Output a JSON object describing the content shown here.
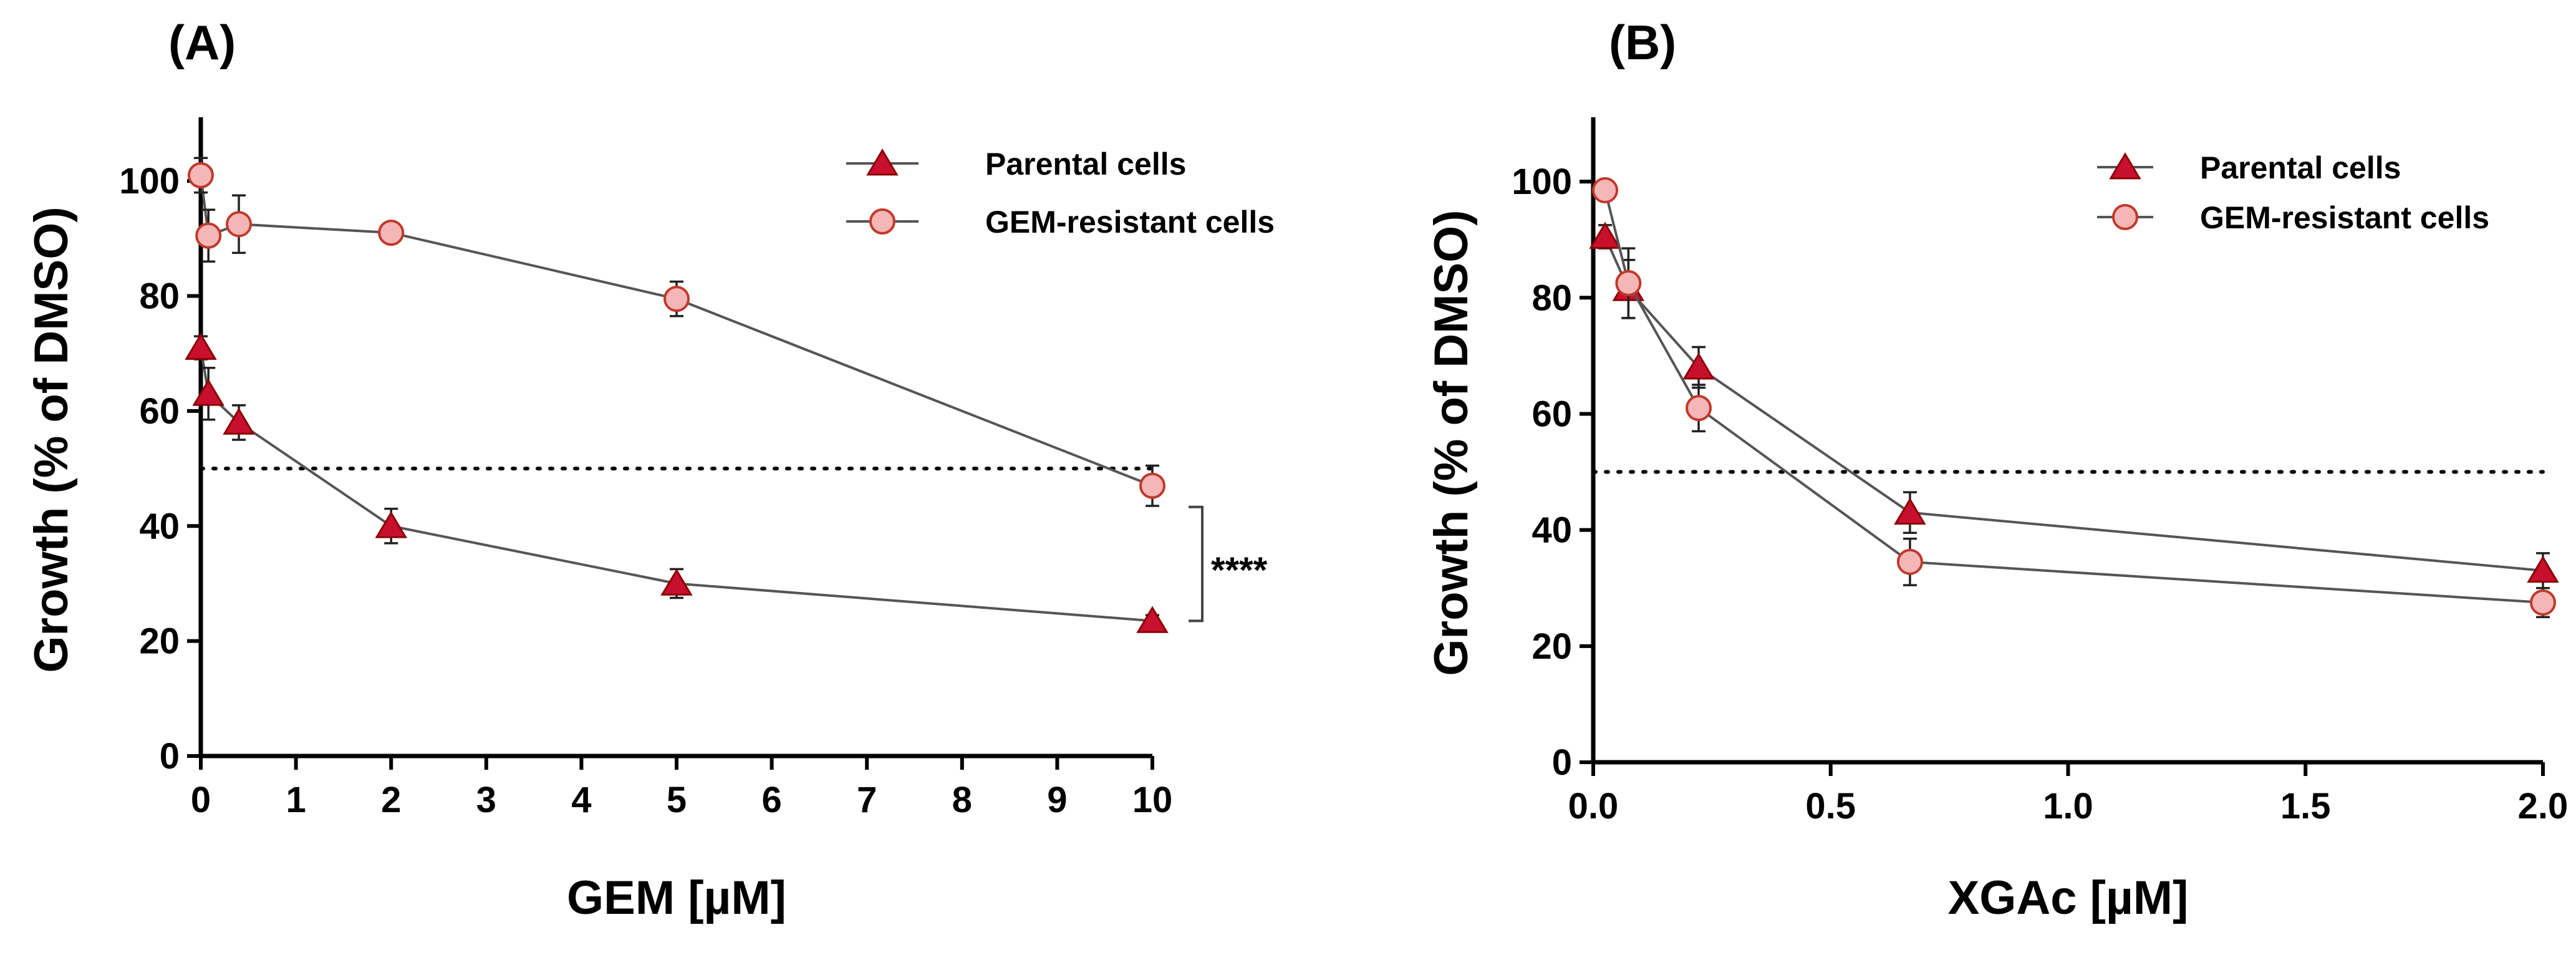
{
  "chart_data": [
    {
      "type": "line",
      "panel_label": "(A)",
      "xlabel": "GEM [µM]",
      "ylabel": "Growth (% of DMSO)",
      "xlim": [
        0,
        10
      ],
      "ylim": [
        0,
        110
      ],
      "xticks": [
        0,
        1,
        2,
        3,
        4,
        5,
        6,
        7,
        8,
        9,
        10
      ],
      "yticks": [
        0,
        20,
        40,
        60,
        80,
        100
      ],
      "xtick_labels": [
        "0",
        "1",
        "2",
        "3",
        "4",
        "5",
        "6",
        "7",
        "8",
        "9",
        "10"
      ],
      "ytick_labels": [
        "0",
        "20",
        "40",
        "60",
        "80",
        "100"
      ],
      "reference_line": 50,
      "legend_position": "top-right",
      "significance": "****",
      "series": [
        {
          "name": "Parental cells",
          "marker": "triangle",
          "color": "#c8102e",
          "x": [
            0,
            0.08,
            0.4,
            2,
            5,
            10
          ],
          "y": [
            71,
            63,
            58,
            40,
            30,
            23.5
          ],
          "err": [
            2,
            4.5,
            3,
            3,
            2.5,
            1
          ]
        },
        {
          "name": "GEM-resistant cells",
          "marker": "circle",
          "color": "#f4b6b6",
          "x": [
            0,
            0.08,
            0.4,
            2,
            5,
            10
          ],
          "y": [
            101,
            90.5,
            92.5,
            91,
            79.5,
            47
          ],
          "err": [
            3,
            4.5,
            5,
            1,
            3,
            3.5
          ]
        }
      ]
    },
    {
      "type": "line",
      "panel_label": "(B)",
      "xlabel": "XGAc [µM]",
      "ylabel": "Growth (% of DMSO)",
      "xlim": [
        0,
        2.0
      ],
      "ylim": [
        0,
        110
      ],
      "xticks": [
        0,
        0.5,
        1.0,
        1.5,
        2.0
      ],
      "yticks": [
        0,
        20,
        40,
        60,
        80,
        100
      ],
      "xtick_labels": [
        "0.0",
        "0.5",
        "1.0",
        "1.5",
        "2.0"
      ],
      "ytick_labels": [
        "0",
        "20",
        "40",
        "60",
        "80",
        "100"
      ],
      "reference_line": 50,
      "legend_position": "top-right",
      "series": [
        {
          "name": "Parental cells",
          "marker": "triangle",
          "color": "#c8102e",
          "x": [
            0.025,
            0.074,
            0.222,
            0.667,
            2.0
          ],
          "y": [
            90.5,
            81.5,
            68,
            43,
            33
          ],
          "err": [
            2,
            5,
            3.5,
            3.5,
            3
          ]
        },
        {
          "name": "GEM-resistant cells",
          "marker": "circle",
          "color": "#f4b6b6",
          "x": [
            0.025,
            0.074,
            0.222,
            0.667,
            2.0
          ],
          "y": [
            98.5,
            82.5,
            61,
            34.5,
            27.5
          ],
          "err": [
            1,
            6,
            4,
            4,
            2.5
          ]
        }
      ]
    }
  ]
}
